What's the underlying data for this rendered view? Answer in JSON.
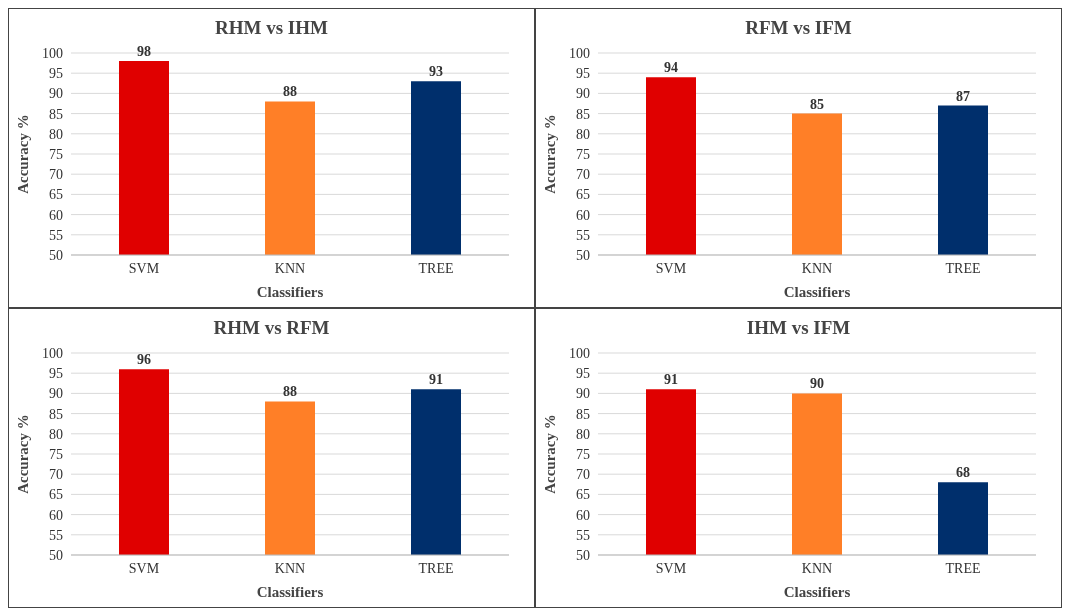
{
  "chart_data": [
    {
      "type": "bar",
      "title": "RHM vs IHM",
      "xlabel": "Classifiers",
      "ylabel": "Accuracy %",
      "categories": [
        "SVM",
        "KNN",
        "TREE"
      ],
      "values": [
        98,
        88,
        93
      ],
      "colors": [
        "#e00000",
        "#ff7f27",
        "#002f6c"
      ],
      "ylim": [
        50,
        100
      ],
      "yticks": [
        50,
        55,
        60,
        65,
        70,
        75,
        80,
        85,
        90,
        95,
        100
      ],
      "grid": "y",
      "data_labels": true
    },
    {
      "type": "bar",
      "title": "RFM vs IFM",
      "xlabel": "Classifiers",
      "ylabel": "Accuracy %",
      "categories": [
        "SVM",
        "KNN",
        "TREE"
      ],
      "values": [
        94,
        85,
        87
      ],
      "colors": [
        "#e00000",
        "#ff7f27",
        "#002f6c"
      ],
      "ylim": [
        50,
        100
      ],
      "yticks": [
        50,
        55,
        60,
        65,
        70,
        75,
        80,
        85,
        90,
        95,
        100
      ],
      "grid": "y",
      "data_labels": true
    },
    {
      "type": "bar",
      "title": "RHM vs RFM",
      "xlabel": "Classifiers",
      "ylabel": "Accuracy %",
      "categories": [
        "SVM",
        "KNN",
        "TREE"
      ],
      "values": [
        96,
        88,
        91
      ],
      "colors": [
        "#e00000",
        "#ff7f27",
        "#002f6c"
      ],
      "ylim": [
        50,
        100
      ],
      "yticks": [
        50,
        55,
        60,
        65,
        70,
        75,
        80,
        85,
        90,
        95,
        100
      ],
      "grid": "y",
      "data_labels": true
    },
    {
      "type": "bar",
      "title": "IHM vs IFM",
      "xlabel": "Classifiers",
      "ylabel": "Accuracy %",
      "categories": [
        "SVM",
        "KNN",
        "TREE"
      ],
      "values": [
        91,
        90,
        68
      ],
      "colors": [
        "#e00000",
        "#ff7f27",
        "#002f6c"
      ],
      "ylim": [
        50,
        100
      ],
      "yticks": [
        50,
        55,
        60,
        65,
        70,
        75,
        80,
        85,
        90,
        95,
        100
      ],
      "grid": "y",
      "data_labels": true
    }
  ]
}
